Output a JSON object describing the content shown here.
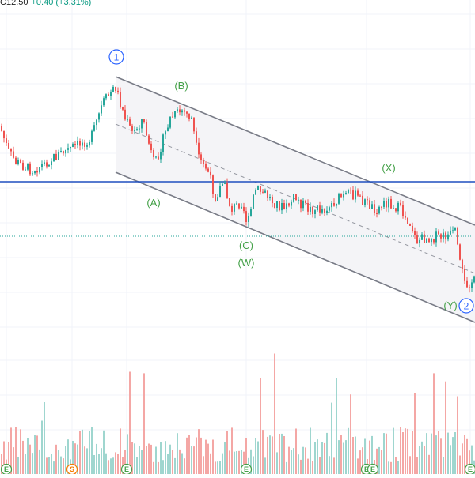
{
  "header": {
    "ohlc_prefix": "C",
    "close": "12.50",
    "change": "+0.40 (+3.31%)"
  },
  "colors": {
    "up": "#26a69a",
    "down": "#ef5350",
    "volume_up": "#9fd6cf",
    "volume_down": "#f4a7a5",
    "channel": "#787b86",
    "horizontal_line": "#1f4fbf",
    "wave_label": "#43a047",
    "circle_label": "#2962ff",
    "marker_earnings": "#43a047",
    "marker_split": "#f57c00"
  },
  "wave_labels": [
    {
      "text": "(A)"
    },
    {
      "text": "(B)"
    },
    {
      "text": "(C)"
    },
    {
      "text": "(W)"
    },
    {
      "text": "(X)"
    },
    {
      "text": "(Y)"
    }
  ],
  "circle_labels": [
    {
      "text": "1"
    },
    {
      "text": "2"
    }
  ],
  "event_markers": [
    {
      "text": "E",
      "kind": "earnings"
    },
    {
      "text": "S",
      "kind": "split"
    },
    {
      "text": "E",
      "kind": "earnings"
    },
    {
      "text": "E",
      "kind": "earnings"
    },
    {
      "text": "E",
      "kind": "earnings"
    },
    {
      "text": "E",
      "kind": "earnings"
    },
    {
      "text": "E",
      "kind": "earnings"
    }
  ]
}
